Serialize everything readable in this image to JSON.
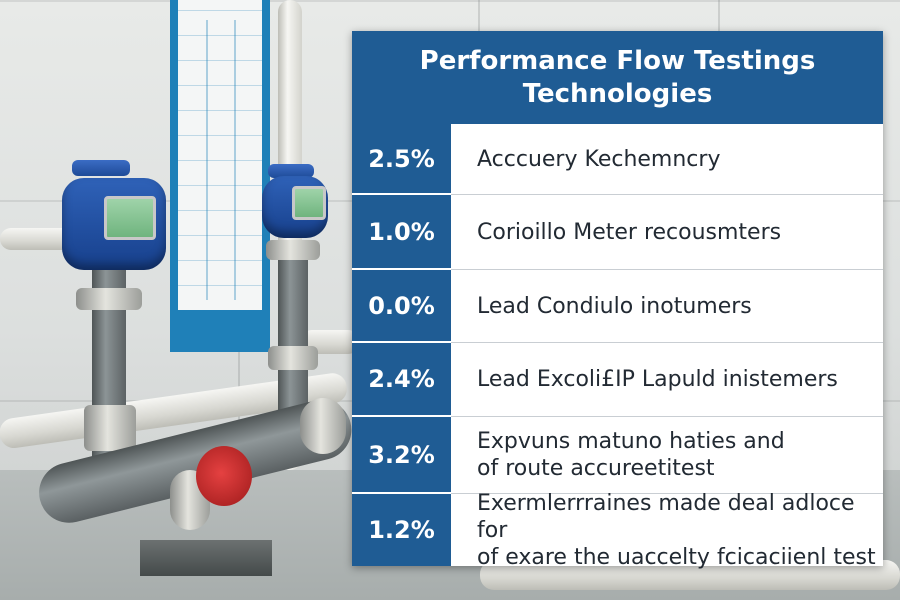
{
  "panel": {
    "title_lines": [
      "Performance Flow Testings",
      "Technologies"
    ],
    "rows": [
      {
        "percent": "2.5%",
        "lines": [
          "Acccuery Kechemncry"
        ]
      },
      {
        "percent": "1.0%",
        "lines": [
          "Corioillo Meter recousmters"
        ]
      },
      {
        "percent": "0.0%",
        "lines": [
          "Lead Condiulo inotumers"
        ]
      },
      {
        "percent": "2.4%",
        "lines": [
          "Lead Excoli£IP Lapuld inistemers"
        ]
      },
      {
        "percent": "3.2%",
        "lines": [
          "Expvuns matuno haties and",
          "of  route accureetitest"
        ]
      },
      {
        "percent": "1.2%",
        "lines": [
          "Exermlerrraines made deal adloce for",
          "of exare the uaccelty fcicaciienl test"
        ]
      }
    ]
  },
  "colors": {
    "panel_blue": "#1f5c94",
    "panel_text": "#222a33",
    "meter_blue": "#2a5cb0"
  }
}
